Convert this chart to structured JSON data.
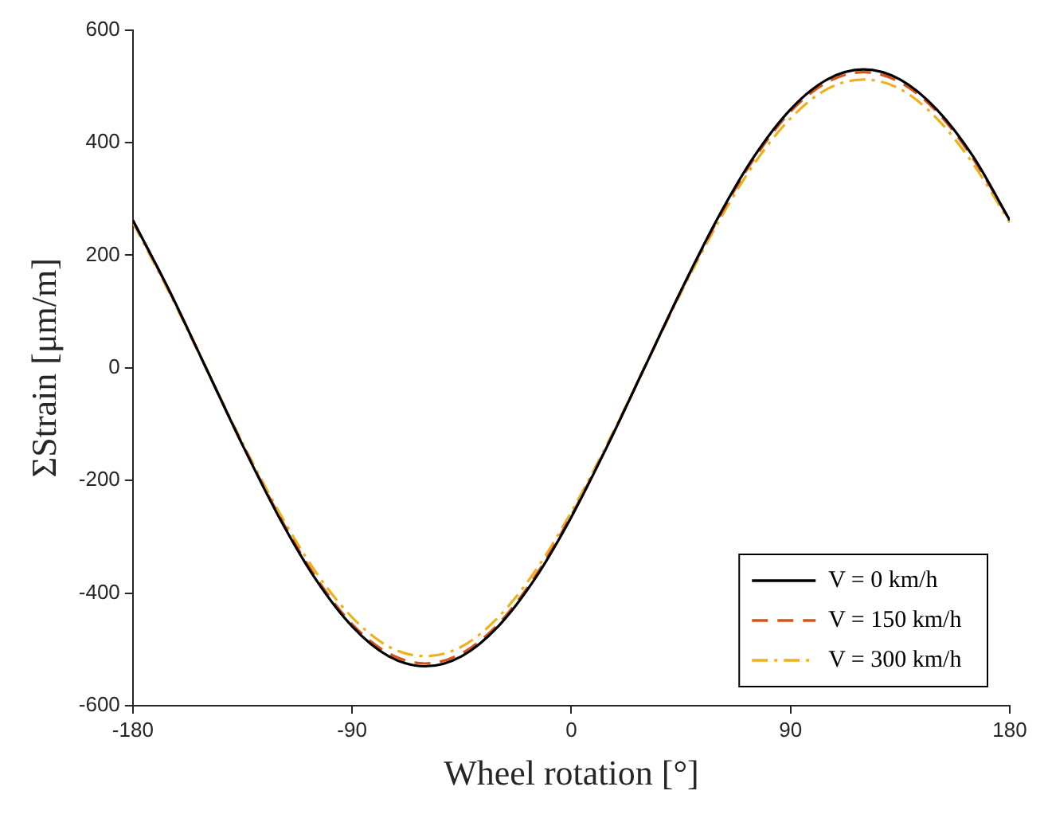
{
  "chart_data": {
    "type": "line",
    "xlabel": "Wheel rotation [°]",
    "ylabel": "ΣStrain [μm/m]",
    "x": [
      -180,
      -165,
      -150,
      -135,
      -120,
      -105,
      -90,
      -75,
      -60,
      -45,
      -30,
      -15,
      0,
      15,
      30,
      45,
      60,
      75,
      90,
      105,
      120,
      135,
      150,
      165,
      180
    ],
    "series": [
      {
        "name": "V = 0 km/h",
        "color": "#000000",
        "line_style": "solid",
        "values": [
          262,
          137,
          0,
          -137,
          -265,
          -375,
          -459,
          -512,
          -530,
          -512,
          -459,
          -375,
          -265,
          -137,
          0,
          137,
          265,
          375,
          459,
          512,
          530,
          512,
          459,
          375,
          262
        ]
      },
      {
        "name": "V = 150 km/h",
        "color": "#d95319",
        "line_style": "dashed",
        "values": [
          262,
          136,
          0,
          -136,
          -262,
          -371,
          -455,
          -507,
          -525,
          -507,
          -455,
          -371,
          -262,
          -136,
          0,
          136,
          262,
          371,
          455,
          507,
          525,
          507,
          455,
          371,
          262
        ]
      },
      {
        "name": "V = 300 km/h",
        "color": "#edb120",
        "line_style": "dashdot",
        "values": [
          258,
          133,
          0,
          -133,
          -256,
          -362,
          -443,
          -495,
          -512,
          -495,
          -443,
          -362,
          -256,
          -133,
          0,
          133,
          256,
          362,
          443,
          495,
          512,
          495,
          443,
          362,
          258
        ]
      }
    ],
    "xlim": [
      -180,
      180
    ],
    "xticks": [
      -180,
      -90,
      0,
      90,
      180
    ],
    "ylim": [
      -600,
      600
    ],
    "yticks": [
      -600,
      -400,
      -200,
      0,
      200,
      400,
      600
    ],
    "grid": false,
    "legend": "bottom right",
    "marker": "none"
  }
}
